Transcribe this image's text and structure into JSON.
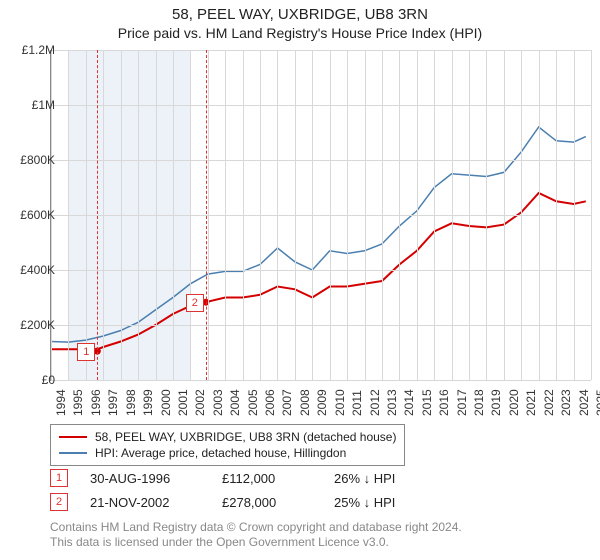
{
  "title": "58, PEEL WAY, UXBRIDGE, UB8 3RN",
  "subtitle": "Price paid vs. HM Land Registry's House Price Index (HPI)",
  "chart": {
    "type": "line",
    "background_color": "#ffffff",
    "grid_color": "#d8d8d8",
    "axis_color": "#888888",
    "title_fontsize": 15,
    "subtitle_fontsize": 14,
    "tick_fontsize": 12,
    "x": {
      "min": 1994,
      "max": 2025,
      "ticks": [
        1994,
        1995,
        1996,
        1997,
        1998,
        1999,
        2000,
        2001,
        2002,
        2003,
        2004,
        2005,
        2006,
        2007,
        2008,
        2009,
        2010,
        2011,
        2012,
        2013,
        2014,
        2015,
        2016,
        2017,
        2018,
        2019,
        2020,
        2021,
        2022,
        2023,
        2024,
        2025
      ]
    },
    "y": {
      "min": 0,
      "max": 1200000,
      "ticks": [
        0,
        200000,
        400000,
        600000,
        800000,
        1000000,
        1200000
      ],
      "labels": [
        "£0",
        "£200K",
        "£400K",
        "£600K",
        "£800K",
        "£1M",
        "£1.2M"
      ]
    },
    "band": {
      "from": 1995,
      "to": 2002,
      "color": "#ecf2f8"
    },
    "callouts": [
      {
        "n": "1",
        "year": 1996.66,
        "y": 105000
      },
      {
        "n": "2",
        "year": 2002.89,
        "y": 283000
      }
    ],
    "series": [
      {
        "id": "price_paid",
        "label": "58, PEEL WAY, UXBRIDGE, UB8 3RN (detached house)",
        "color": "#d40000",
        "line_width": 2,
        "points": [
          [
            1994,
            112000
          ],
          [
            1995,
            112000
          ],
          [
            1996,
            112000
          ],
          [
            1996.66,
            112000
          ],
          [
            1997,
            120000
          ],
          [
            1998,
            140000
          ],
          [
            1999,
            165000
          ],
          [
            2000,
            200000
          ],
          [
            2001,
            240000
          ],
          [
            2002,
            270000
          ],
          [
            2002.89,
            278000
          ],
          [
            2003,
            285000
          ],
          [
            2004,
            300000
          ],
          [
            2005,
            300000
          ],
          [
            2006,
            310000
          ],
          [
            2007,
            340000
          ],
          [
            2008,
            330000
          ],
          [
            2009,
            300000
          ],
          [
            2010,
            340000
          ],
          [
            2011,
            340000
          ],
          [
            2012,
            350000
          ],
          [
            2013,
            360000
          ],
          [
            2014,
            420000
          ],
          [
            2015,
            470000
          ],
          [
            2016,
            540000
          ],
          [
            2017,
            570000
          ],
          [
            2018,
            560000
          ],
          [
            2019,
            555000
          ],
          [
            2020,
            565000
          ],
          [
            2021,
            610000
          ],
          [
            2022,
            680000
          ],
          [
            2023,
            650000
          ],
          [
            2024,
            640000
          ],
          [
            2024.7,
            650000
          ]
        ]
      },
      {
        "id": "hpi",
        "label": "HPI: Average price, detached house, Hillingdon",
        "color": "#4a7fb0",
        "line_width": 1.5,
        "points": [
          [
            1994,
            140000
          ],
          [
            1995,
            138000
          ],
          [
            1996,
            145000
          ],
          [
            1997,
            160000
          ],
          [
            1998,
            180000
          ],
          [
            1999,
            210000
          ],
          [
            2000,
            255000
          ],
          [
            2001,
            300000
          ],
          [
            2002,
            350000
          ],
          [
            2003,
            385000
          ],
          [
            2004,
            395000
          ],
          [
            2005,
            395000
          ],
          [
            2006,
            420000
          ],
          [
            2007,
            480000
          ],
          [
            2008,
            430000
          ],
          [
            2009,
            400000
          ],
          [
            2010,
            470000
          ],
          [
            2011,
            460000
          ],
          [
            2012,
            470000
          ],
          [
            2013,
            495000
          ],
          [
            2014,
            560000
          ],
          [
            2015,
            615000
          ],
          [
            2016,
            700000
          ],
          [
            2017,
            750000
          ],
          [
            2018,
            745000
          ],
          [
            2019,
            740000
          ],
          [
            2020,
            755000
          ],
          [
            2021,
            830000
          ],
          [
            2022,
            920000
          ],
          [
            2023,
            870000
          ],
          [
            2024,
            865000
          ],
          [
            2024.7,
            885000
          ]
        ]
      }
    ]
  },
  "legend": {
    "border_color": "#888888",
    "items": [
      {
        "color": "#d40000",
        "label": "58, PEEL WAY, UXBRIDGE, UB8 3RN (detached house)"
      },
      {
        "color": "#4a7fb0",
        "label": "HPI: Average price, detached house, Hillingdon"
      }
    ]
  },
  "events": [
    {
      "n": "1",
      "date": "30-AUG-1996",
      "price": "£112,000",
      "delta": "26% ↓ HPI"
    },
    {
      "n": "2",
      "date": "21-NOV-2002",
      "price": "£278,000",
      "delta": "25% ↓ HPI"
    }
  ],
  "footnote_line1": "Contains HM Land Registry data © Crown copyright and database right 2024.",
  "footnote_line2": "This data is licensed under the Open Government Licence v3.0."
}
